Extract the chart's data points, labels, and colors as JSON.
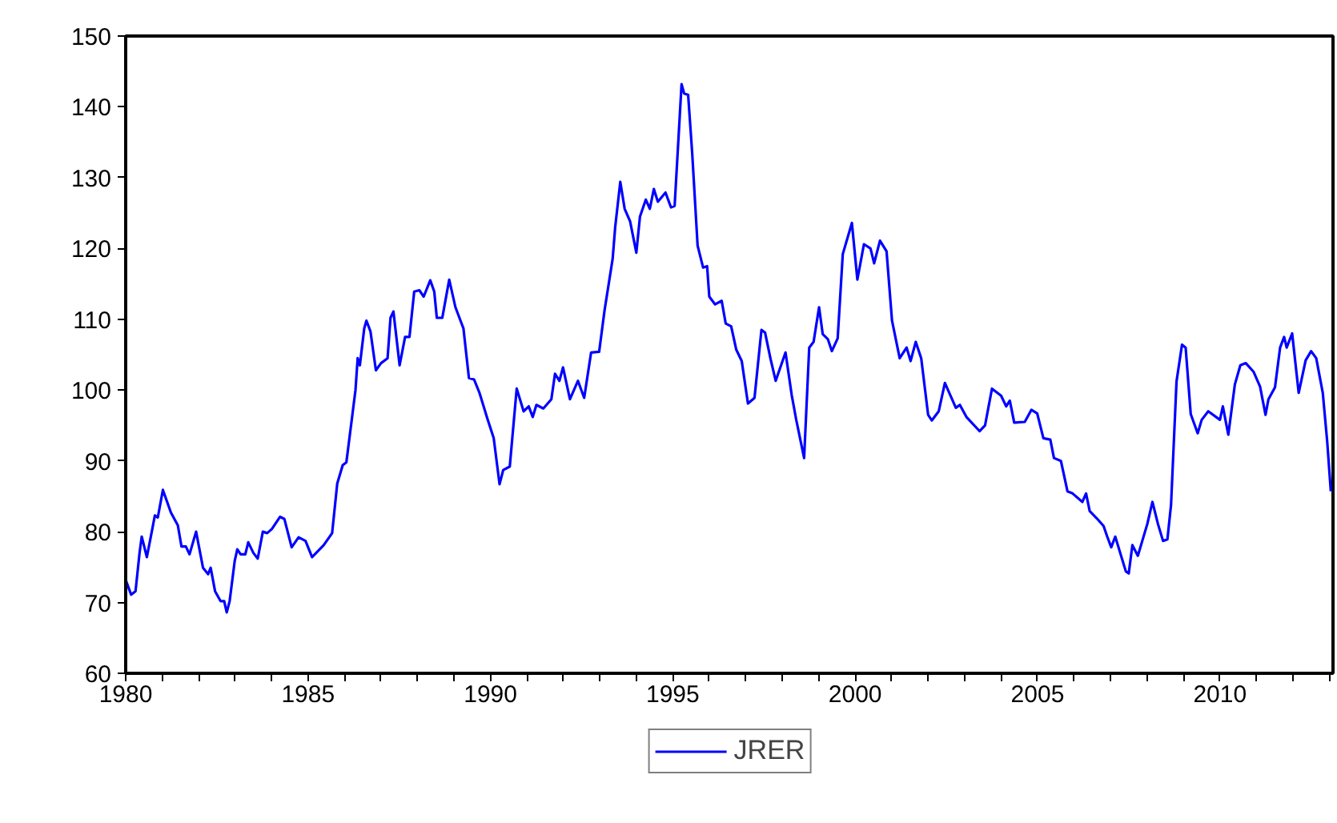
{
  "chart_data": {
    "type": "line",
    "legend": "bottom",
    "grid": false,
    "xlim": [
      1980,
      2013.1
    ],
    "ylim": [
      60,
      150
    ],
    "yticks": [
      60,
      70,
      80,
      90,
      100,
      110,
      120,
      130,
      140,
      150
    ],
    "xticks": [
      1980,
      {
        "value": 1981,
        "label": null
      },
      {
        "value": 1982,
        "label": null
      },
      {
        "value": 1983,
        "label": null
      },
      {
        "value": 1984,
        "label": null
      },
      1985,
      {
        "value": 1986,
        "label": null
      },
      {
        "value": 1987,
        "label": null
      },
      {
        "value": 1988,
        "label": null
      },
      {
        "value": 1989,
        "label": null
      },
      1990,
      {
        "value": 1991,
        "label": null
      },
      {
        "value": 1992,
        "label": null
      },
      {
        "value": 1993,
        "label": null
      },
      {
        "value": 1994,
        "label": null
      },
      1995,
      {
        "value": 1996,
        "label": null
      },
      {
        "value": 1997,
        "label": null
      },
      {
        "value": 1998,
        "label": null
      },
      {
        "value": 1999,
        "label": null
      },
      2000,
      {
        "value": 2001,
        "label": null
      },
      {
        "value": 2002,
        "label": null
      },
      {
        "value": 2003,
        "label": null
      },
      {
        "value": 2004,
        "label": null
      },
      2005,
      {
        "value": 2006,
        "label": null
      },
      {
        "value": 2007,
        "label": null
      },
      {
        "value": 2008,
        "label": null
      },
      {
        "value": 2009,
        "label": null
      },
      2010,
      {
        "value": 2011,
        "label": null
      },
      {
        "value": 2012,
        "label": null
      },
      {
        "value": 2013,
        "label": null
      }
    ],
    "series": [
      {
        "name": "JRER",
        "color": "#0000ff",
        "x": [
          1980.0,
          1980.15,
          1980.27,
          1980.38,
          1980.44,
          1980.58,
          1980.73,
          1980.8,
          1980.88,
          1981.02,
          1981.24,
          1981.43,
          1981.53,
          1981.65,
          1981.75,
          1981.93,
          1982.12,
          1982.26,
          1982.33,
          1982.45,
          1982.6,
          1982.7,
          1982.77,
          1982.85,
          1982.99,
          1983.06,
          1983.15,
          1983.28,
          1983.36,
          1983.5,
          1983.62,
          1983.76,
          1983.88,
          1984.01,
          1984.23,
          1984.35,
          1984.55,
          1984.74,
          1984.93,
          1985.11,
          1985.43,
          1985.66,
          1985.8,
          1985.95,
          1986.05,
          1986.2,
          1986.3,
          1986.36,
          1986.42,
          1986.54,
          1986.6,
          1986.71,
          1986.86,
          1987.0,
          1987.18,
          1987.26,
          1987.34,
          1987.51,
          1987.66,
          1987.78,
          1987.91,
          1988.05,
          1988.17,
          1988.35,
          1988.46,
          1988.53,
          1988.68,
          1988.87,
          1989.04,
          1989.26,
          1989.41,
          1989.55,
          1989.7,
          1989.92,
          1990.09,
          1990.25,
          1990.35,
          1990.53,
          1990.72,
          1990.91,
          1991.05,
          1991.16,
          1991.26,
          1991.45,
          1991.67,
          1991.77,
          1991.89,
          1991.99,
          1992.18,
          1992.4,
          1992.57,
          1992.76,
          1992.98,
          1993.13,
          1993.35,
          1993.42,
          1993.56,
          1993.68,
          1993.83,
          1994.0,
          1994.1,
          1994.26,
          1994.37,
          1994.48,
          1994.59,
          1994.8,
          1994.95,
          1995.05,
          1995.24,
          1995.31,
          1995.42,
          1995.53,
          1995.68,
          1995.83,
          1995.94,
          1996.0,
          1996.16,
          1996.34,
          1996.45,
          1996.6,
          1996.74,
          1996.89,
          1997.06,
          1997.24,
          1997.43,
          1997.53,
          1997.68,
          1997.82,
          1998.09,
          1998.26,
          1998.38,
          1998.6,
          1998.74,
          1998.86,
          1999.01,
          1999.11,
          1999.25,
          1999.36,
          1999.52,
          1999.66,
          1999.91,
          2000.06,
          2000.24,
          2000.42,
          2000.52,
          2000.68,
          2000.86,
          2001.01,
          2001.22,
          2001.41,
          2001.52,
          2001.66,
          2001.81,
          2002.0,
          2002.1,
          2002.29,
          2002.46,
          2002.76,
          2002.87,
          2003.05,
          2003.41,
          2003.56,
          2003.75,
          2004.0,
          2004.14,
          2004.24,
          2004.36,
          2004.65,
          2004.83,
          2004.99,
          2005.16,
          2005.35,
          2005.45,
          2005.64,
          2005.82,
          2005.96,
          2006.23,
          2006.33,
          2006.43,
          2006.62,
          2006.81,
          2006.91,
          2007.02,
          2007.13,
          2007.42,
          2007.5,
          2007.6,
          2007.75,
          2007.86,
          2008.01,
          2008.15,
          2008.3,
          2008.44,
          2008.56,
          2008.66,
          2008.81,
          2008.96,
          2009.06,
          2009.2,
          2009.39,
          2009.5,
          2009.68,
          2010.0,
          2010.08,
          2010.23,
          2010.41,
          2010.56,
          2010.71,
          2010.92,
          2011.1,
          2011.25,
          2011.33,
          2011.51,
          2011.65,
          2011.76,
          2011.83,
          2011.98,
          2012.16,
          2012.35,
          2012.5,
          2012.64,
          2012.82,
          2012.94,
          2013.04
        ],
        "values": [
          73.2,
          71.1,
          71.6,
          77,
          79.3,
          76.4,
          80.4,
          82.3,
          82,
          85.9,
          82.7,
          80.9,
          77.9,
          77.9,
          76.8,
          80,
          74.9,
          74,
          74.9,
          71.6,
          70.2,
          70.2,
          68.6,
          70.2,
          75.9,
          77.5,
          76.8,
          76.8,
          78.5,
          77,
          76.2,
          80,
          79.8,
          80.4,
          82.1,
          81.8,
          77.8,
          79.2,
          78.7,
          76.4,
          78.1,
          79.8,
          86.8,
          89.4,
          89.8,
          95.9,
          100,
          104.5,
          103.5,
          108.7,
          109.8,
          108.3,
          102.8,
          103.8,
          104.5,
          110.2,
          111.1,
          103.5,
          107.5,
          107.5,
          113.9,
          114.1,
          113.2,
          115.5,
          113.9,
          110.2,
          110.2,
          115.6,
          111.7,
          108.7,
          101.7,
          101.5,
          99.6,
          95.9,
          93.2,
          86.7,
          88.7,
          89.2,
          100.2,
          97,
          97.7,
          96.2,
          97.9,
          97.4,
          98.7,
          102.3,
          101.3,
          103.2,
          98.7,
          101.3,
          98.9,
          105.3,
          105.4,
          111.3,
          118.5,
          123,
          129.4,
          125.6,
          123.8,
          119.4,
          124.5,
          126.9,
          125.6,
          128.4,
          126.6,
          127.9,
          125.8,
          126,
          143.2,
          141.9,
          141.7,
          133.6,
          120.4,
          117.3,
          117.5,
          113.2,
          112.1,
          112.6,
          109.4,
          109,
          105.7,
          104.1,
          98.1,
          98.9,
          108.5,
          108.1,
          104.4,
          101.3,
          105.3,
          99.3,
          95.9,
          90.4,
          106,
          106.8,
          111.7,
          107.9,
          107.2,
          105.5,
          107.3,
          119.2,
          123.6,
          115.6,
          120.6,
          120,
          117.9,
          121.1,
          119.6,
          109.8,
          104.5,
          106,
          104.1,
          106.8,
          104.5,
          96.5,
          95.7,
          97,
          101,
          97.5,
          97.9,
          96.2,
          94.2,
          95,
          100.2,
          99.2,
          97.7,
          98.5,
          95.4,
          95.5,
          97.2,
          96.7,
          93.2,
          93,
          90.4,
          90,
          85.7,
          85.4,
          84.2,
          85.4,
          82.9,
          81.9,
          80.8,
          79.3,
          77.8,
          79.3,
          74.4,
          74.1,
          78.1,
          76.6,
          78.5,
          81.1,
          84.2,
          81.1,
          78.7,
          78.9,
          83.8,
          101.2,
          106.4,
          106,
          96.6,
          93.9,
          95.8,
          97,
          95.8,
          97.7,
          93.7,
          100.8,
          103.5,
          103.8,
          102.6,
          100.5,
          96.5,
          98.7,
          100.4,
          106,
          107.5,
          106,
          108,
          99.6,
          104.2,
          105.5,
          104.5,
          99.6,
          92.8,
          85.7
        ]
      }
    ]
  }
}
